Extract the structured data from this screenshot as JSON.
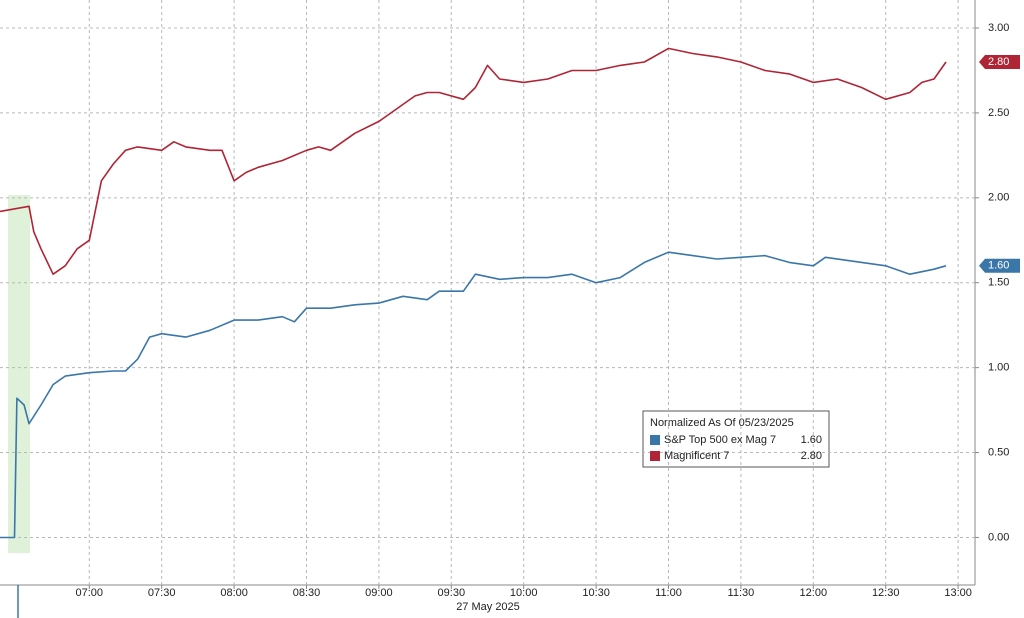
{
  "chart_data": {
    "type": "line",
    "xlabel": "27 May 2025",
    "xlim": [
      "06:23",
      "13:07"
    ],
    "xticks": [
      "07:00",
      "07:30",
      "08:00",
      "08:30",
      "09:00",
      "09:30",
      "10:00",
      "10:30",
      "11:00",
      "11:30",
      "12:00",
      "12:30",
      "13:00"
    ],
    "ylim": [
      -0.28,
      3.165
    ],
    "yticks": [
      {
        "value": 0,
        "label": "0.00"
      },
      {
        "value": 0.5,
        "label": "0.50"
      },
      {
        "value": 1,
        "label": "1.00"
      },
      {
        "value": 1.5,
        "label": "1.50"
      },
      {
        "value": 2,
        "label": "2.00"
      },
      {
        "value": 2.5,
        "label": "2.50"
      },
      {
        "value": 3,
        "label": "3.00"
      }
    ],
    "grid": true,
    "legend_title": "Normalized As Of 05/23/2025",
    "series": [
      {
        "name": "S&P Top 500 ex Mag 7",
        "color": "#3a77a8",
        "last_label": "1.60",
        "x": [
          "06:23",
          "06:29",
          "06:30",
          "06:33",
          "06:35",
          "06:40",
          "06:45",
          "06:50",
          "07:00",
          "07:10",
          "07:15",
          "07:20",
          "07:25",
          "07:30",
          "07:40",
          "07:50",
          "08:00",
          "08:10",
          "08:20",
          "08:25",
          "08:30",
          "08:40",
          "08:50",
          "09:00",
          "09:10",
          "09:20",
          "09:25",
          "09:35",
          "09:40",
          "09:50",
          "10:00",
          "10:10",
          "10:20",
          "10:30",
          "10:40",
          "10:50",
          "11:00",
          "11:10",
          "11:20",
          "11:30",
          "11:40",
          "11:50",
          "12:00",
          "12:05",
          "12:20",
          "12:30",
          "12:40",
          "12:50",
          "12:55"
        ],
        "values": [
          0,
          0,
          0.82,
          0.78,
          0.67,
          0.78,
          0.9,
          0.95,
          0.97,
          0.98,
          0.98,
          1.05,
          1.18,
          1.2,
          1.18,
          1.22,
          1.28,
          1.28,
          1.3,
          1.27,
          1.35,
          1.35,
          1.37,
          1.38,
          1.42,
          1.4,
          1.45,
          1.45,
          1.55,
          1.52,
          1.53,
          1.53,
          1.55,
          1.5,
          1.53,
          1.62,
          1.68,
          1.66,
          1.64,
          1.65,
          1.66,
          1.62,
          1.6,
          1.65,
          1.62,
          1.6,
          1.55,
          1.58,
          1.6
        ]
      },
      {
        "name": "Magnificent 7",
        "color": "#b02535",
        "last_label": "2.80",
        "x": [
          "06:23",
          "06:35",
          "06:37",
          "06:40",
          "06:45",
          "06:50",
          "06:55",
          "07:00",
          "07:05",
          "07:10",
          "07:15",
          "07:20",
          "07:30",
          "07:35",
          "07:40",
          "07:50",
          "07:55",
          "08:00",
          "08:05",
          "08:10",
          "08:20",
          "08:30",
          "08:35",
          "08:40",
          "08:50",
          "09:00",
          "09:05",
          "09:10",
          "09:15",
          "09:20",
          "09:25",
          "09:35",
          "09:40",
          "09:45",
          "09:50",
          "10:00",
          "10:10",
          "10:20",
          "10:30",
          "10:40",
          "10:50",
          "11:00",
          "11:10",
          "11:20",
          "11:30",
          "11:40",
          "11:50",
          "12:00",
          "12:10",
          "12:20",
          "12:30",
          "12:40",
          "12:45",
          "12:50",
          "12:55"
        ],
        "values": [
          1.92,
          1.95,
          1.8,
          1.7,
          1.55,
          1.6,
          1.7,
          1.75,
          2.1,
          2.2,
          2.28,
          2.3,
          2.28,
          2.33,
          2.3,
          2.28,
          2.28,
          2.1,
          2.15,
          2.18,
          2.22,
          2.28,
          2.3,
          2.28,
          2.38,
          2.45,
          2.5,
          2.55,
          2.6,
          2.62,
          2.62,
          2.58,
          2.65,
          2.78,
          2.7,
          2.68,
          2.7,
          2.75,
          2.75,
          2.78,
          2.8,
          2.88,
          2.85,
          2.83,
          2.8,
          2.75,
          2.73,
          2.68,
          2.7,
          2.65,
          2.58,
          2.62,
          2.68,
          2.7,
          2.8
        ]
      }
    ]
  }
}
